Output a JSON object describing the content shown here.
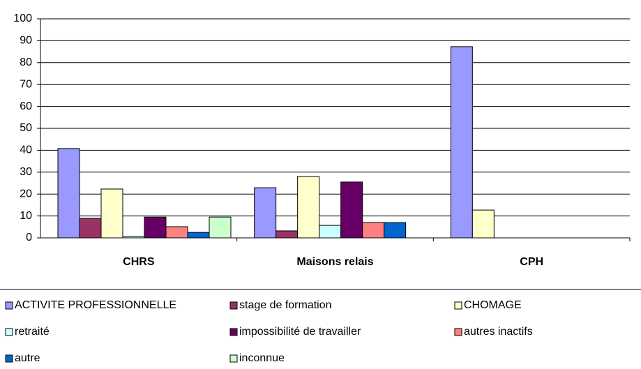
{
  "chart_data": {
    "type": "bar",
    "categories": [
      "CHRS",
      "Maisons relais",
      "CPH"
    ],
    "series": [
      {
        "name": "ACTIVITE PROFESSIONNELLE",
        "color": "#9999ff",
        "values": [
          40.8,
          22.9,
          87.3
        ]
      },
      {
        "name": "stage de formation",
        "color": "#993366",
        "values": [
          8.9,
          3.2,
          null
        ]
      },
      {
        "name": "CHOMAGE",
        "color": "#ffffcc",
        "values": [
          22.3,
          28.0,
          12.7
        ]
      },
      {
        "name": "retraité",
        "color": "#ccffff",
        "values": [
          0.6,
          5.7,
          null
        ]
      },
      {
        "name": "impossibilité de travailler",
        "color": "#660066",
        "values": [
          9.5,
          25.5,
          null
        ]
      },
      {
        "name": "autres inactifs",
        "color": "#ff8080",
        "values": [
          5.1,
          7.0,
          null
        ]
      },
      {
        "name": "autre",
        "color": "#0066cc",
        "values": [
          2.5,
          7.0,
          null
        ]
      },
      {
        "name": "inconnue",
        "color": "#ccffcc",
        "values": [
          9.5,
          null,
          null
        ]
      }
    ],
    "ylim": [
      0,
      100
    ],
    "yticks": [
      0,
      10,
      20,
      30,
      40,
      50,
      60,
      70,
      80,
      90,
      100
    ],
    "grid": true,
    "legend": "bottom"
  }
}
